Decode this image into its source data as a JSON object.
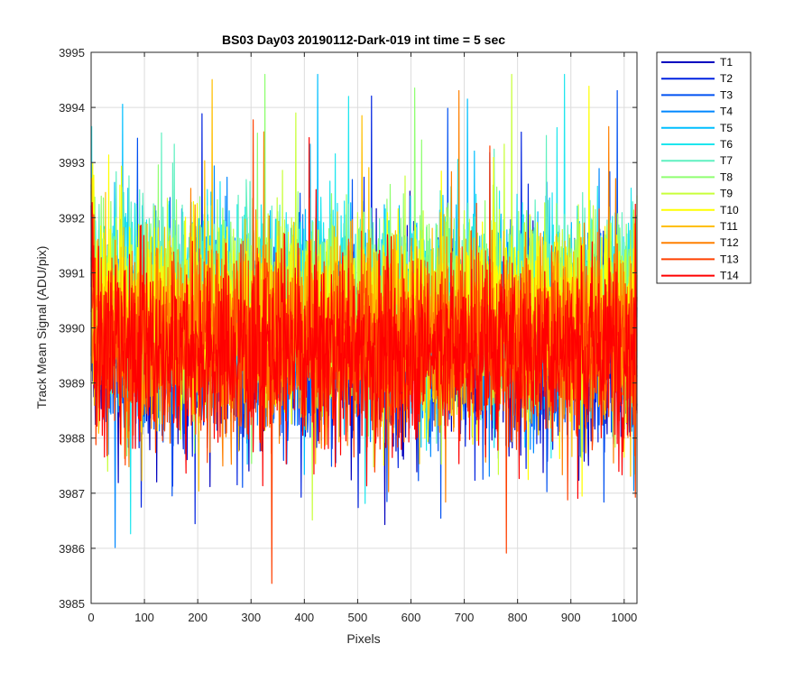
{
  "chart_data": {
    "type": "line",
    "title": "BS03 Day03 20190112-Dark-019 int time = 5 sec",
    "xlabel": "Pixels",
    "ylabel": "Track Mean Signal (ADU/pix)",
    "xlim": [
      0,
      1024
    ],
    "ylim": [
      3985,
      3995
    ],
    "xticks": [
      0,
      100,
      200,
      300,
      400,
      500,
      600,
      700,
      800,
      900,
      1000
    ],
    "yticks": [
      3985,
      3986,
      3987,
      3988,
      3989,
      3990,
      3991,
      3992,
      3993,
      3994,
      3995
    ],
    "grid": true,
    "legend_position": "outside-top-right",
    "noise_summary": {
      "mean_signal": 3989.9,
      "typical_min": 3987.5,
      "typical_max": 3992.5,
      "extreme_min": 3985.1,
      "extreme_max": 3994.6
    },
    "series": [
      {
        "name": "T1",
        "color": "#0000bf",
        "center": 3989.6
      },
      {
        "name": "T2",
        "color": "#0022e0",
        "center": 3989.7
      },
      {
        "name": "T3",
        "color": "#0051f2",
        "center": 3989.8
      },
      {
        "name": "T4",
        "color": "#0087ff",
        "center": 3990.0
      },
      {
        "name": "T5",
        "color": "#00bfff",
        "center": 3990.3
      },
      {
        "name": "T6",
        "color": "#1ee6ee",
        "center": 3990.6
      },
      {
        "name": "T7",
        "color": "#5ff0c0",
        "center": 3990.6
      },
      {
        "name": "T8",
        "color": "#8fff70",
        "center": 3990.5
      },
      {
        "name": "T9",
        "color": "#c8ff3a",
        "center": 3990.3
      },
      {
        "name": "T10",
        "color": "#ffff00",
        "center": 3990.2
      },
      {
        "name": "T11",
        "color": "#ffbf00",
        "center": 3990.0
      },
      {
        "name": "T12",
        "color": "#ff8000",
        "center": 3989.8
      },
      {
        "name": "T13",
        "color": "#ff4000",
        "center": 3989.7
      },
      {
        "name": "T14",
        "color": "#ff0000",
        "center": 3989.6
      }
    ]
  }
}
